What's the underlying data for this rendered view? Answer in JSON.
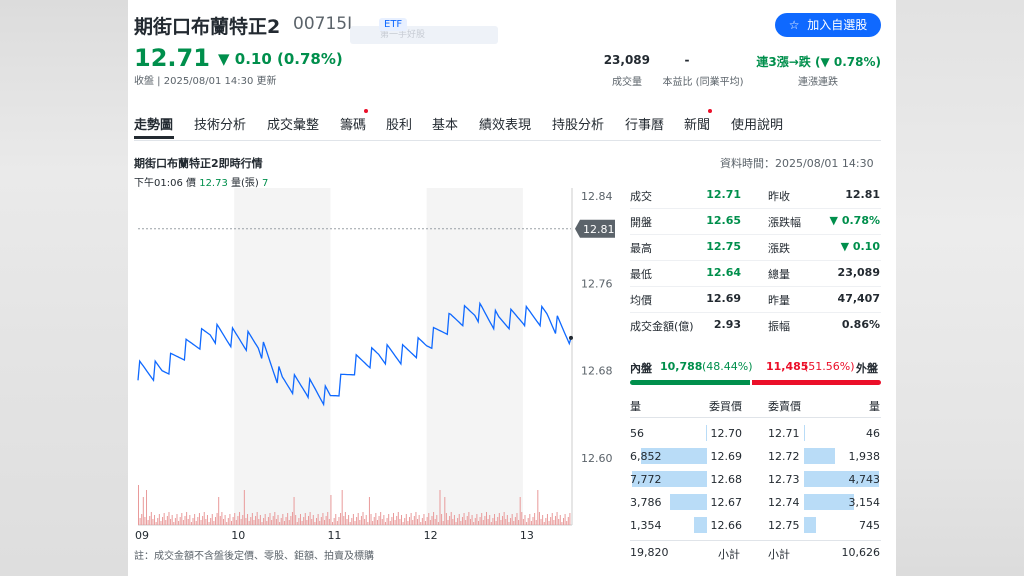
{
  "header": {
    "name": "期街口布蘭特正2",
    "code": "00715L",
    "etf_badge": "ETF",
    "ghost_text": "第一手好股",
    "add_button": "加入自選股",
    "price": "12.71",
    "change": "▼ 0.10 (0.78%)",
    "status": "收盤 | 2025/08/01 14:30 更新"
  },
  "stats": [
    {
      "value": "23,089",
      "label": "成交量"
    },
    {
      "value": "-",
      "label": "本益比 (同業平均)"
    },
    {
      "value": "連3漲→跌 (▼ 0.78%)",
      "label": "連漲連跌"
    }
  ],
  "tabs": [
    "走勢圖",
    "技術分析",
    "成交彙整",
    "籌碼",
    "股利",
    "基本",
    "績效表現",
    "持股分析",
    "行事曆",
    "新聞",
    "使用說明"
  ],
  "chart_header": {
    "title": "期街口布蘭特正2即時行情",
    "data_time": "資料時間：2025/08/01 14:30",
    "tip_time": "下午01:06",
    "tip_price_label": "價",
    "tip_price": "12.73",
    "tip_vol_label": "量(張)",
    "tip_vol": "7"
  },
  "chart_data": {
    "type": "line",
    "title": "期街口布蘭特正2即時行情",
    "ylim": [
      12.6,
      12.84
    ],
    "y_ticks": [
      "12.84",
      "12.76",
      "12.68",
      "12.60"
    ],
    "x_ticks": [
      "09",
      "10",
      "11",
      "12",
      "13"
    ],
    "prev_close": "12.81",
    "x": [
      9.0,
      9.25,
      9.5,
      9.75,
      10.0,
      10.25,
      10.5,
      10.75,
      11.0,
      11.25,
      11.5,
      11.75,
      12.0,
      12.25,
      12.5,
      12.75,
      13.0,
      13.25,
      13.5
    ],
    "values": [
      12.68,
      12.68,
      12.7,
      12.715,
      12.71,
      12.705,
      12.67,
      12.665,
      12.655,
      12.685,
      12.695,
      12.695,
      12.705,
      12.725,
      12.735,
      12.725,
      12.73,
      12.73,
      12.71
    ]
  },
  "quote": [
    {
      "l1": "成交",
      "v1": "12.71",
      "c1": "green",
      "l2": "昨收",
      "v2": "12.81",
      "c2": ""
    },
    {
      "l1": "開盤",
      "v1": "12.65",
      "c1": "green",
      "l2": "漲跌幅",
      "v2": "▼ 0.78%",
      "c2": "green"
    },
    {
      "l1": "最高",
      "v1": "12.75",
      "c1": "green",
      "l2": "漲跌",
      "v2": "▼ 0.10",
      "c2": "green"
    },
    {
      "l1": "最低",
      "v1": "12.64",
      "c1": "green",
      "l2": "總量",
      "v2": "23,089",
      "c2": ""
    },
    {
      "l1": "均價",
      "v1": "12.69",
      "c1": "",
      "l2": "昨量",
      "v2": "47,407",
      "c2": ""
    },
    {
      "l1": "成交金額(億)",
      "v1": "2.93",
      "c1": "",
      "l2": "振幅",
      "v2": "0.86%",
      "c2": ""
    }
  ],
  "inout": {
    "in_label": "內盤",
    "in_value": "10,788",
    "in_pct": "(48.44%)",
    "out_value": "11,485",
    "out_pct": "(51.56%)",
    "out_label": "外盤",
    "in_ratio": 0.4844
  },
  "orderbook": {
    "headers": [
      "量",
      "委買價",
      "委賣價",
      "量"
    ],
    "bids": [
      {
        "vol": "56",
        "price": "12.70",
        "ratio": 0.01
      },
      {
        "vol": "6,852",
        "price": "12.69",
        "ratio": 0.88
      },
      {
        "vol": "7,772",
        "price": "12.68",
        "ratio": 1.0
      },
      {
        "vol": "3,786",
        "price": "12.67",
        "ratio": 0.49
      },
      {
        "vol": "1,354",
        "price": "12.66",
        "ratio": 0.17
      }
    ],
    "asks": [
      {
        "price": "12.71",
        "vol": "46",
        "ratio": 0.01
      },
      {
        "price": "12.72",
        "vol": "1,938",
        "ratio": 0.41
      },
      {
        "price": "12.73",
        "vol": "4,743",
        "ratio": 1.0
      },
      {
        "price": "12.74",
        "vol": "3,154",
        "ratio": 0.66
      },
      {
        "price": "12.75",
        "vol": "745",
        "ratio": 0.16
      }
    ],
    "bid_total": "19,820",
    "bid_total_label": "小計",
    "ask_total_label": "小計",
    "ask_total": "10,626"
  },
  "note": "註：成交金額不含盤後定價、零股、鉅額、拍賣及標購",
  "colors": {
    "up": "#eb0f29",
    "down": "#008f4c",
    "line": "#0f69ff",
    "accent": "#0f69ff"
  }
}
